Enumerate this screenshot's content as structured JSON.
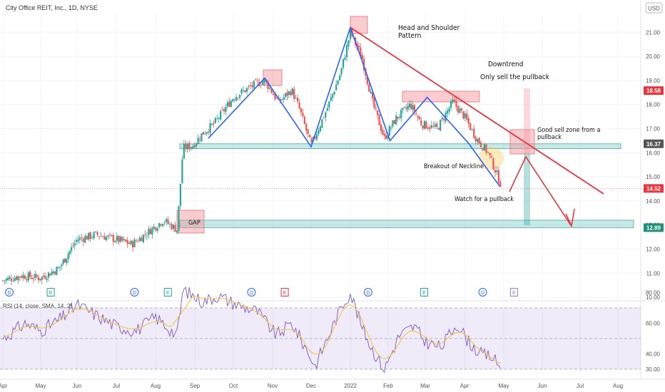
{
  "header": {
    "symbol_title": "City Office REIT, Inc., 1D, NYSE",
    "currency": "USD"
  },
  "rsi_title": "RSI (14, close, SMA, 14, 2)",
  "colors": {
    "up": "#26a69a",
    "down": "#ef5350",
    "trend_blue": "#2962ff",
    "trend_red": "#e8363f",
    "zone_red": "rgba(244,143,151,0.45)",
    "zone_green": "rgba(38,166,154,0.25)",
    "rsi_line": "#7e57c2",
    "rsi_ma": "#f5c542",
    "rsi_band": "rgba(126,87,194,0.12)"
  },
  "annotations": {
    "hs": [
      "Head and Shoulder",
      "Pattern"
    ],
    "downtrend": "Downtrend",
    "only_sell": "Only sell the pullback",
    "good_sell": [
      "Good sell zone from a",
      "pullback"
    ],
    "breakout": "Breakout of Neckline",
    "watch": "Watch for a pullback",
    "gap": "GAP"
  },
  "price_tags": [
    {
      "label": "18.58",
      "value": 18.58,
      "color": "#e8363f"
    },
    {
      "label": "16.37",
      "value": 16.37,
      "color": "#555555"
    },
    {
      "label": "14.52",
      "value": 14.52,
      "color": "#e8363f"
    },
    {
      "label": "12.89",
      "value": 12.89,
      "color": "#1e8f7a"
    }
  ],
  "event_markers": [
    {
      "label": "D",
      "month_index": 0,
      "color": "#2962ff"
    },
    {
      "label": "E",
      "month_index": 1.1,
      "color": "#26a69a"
    },
    {
      "label": "D",
      "month_index": 3.3,
      "color": "#2962ff"
    },
    {
      "label": "E",
      "month_index": 4.15,
      "color": "#26a69a"
    },
    {
      "label": "D",
      "month_index": 6.3,
      "color": "#2962ff"
    },
    {
      "label": "E",
      "month_index": 7.15,
      "color": "#e8363f"
    },
    {
      "label": "D",
      "month_index": 9.3,
      "color": "#2962ff"
    },
    {
      "label": "E",
      "month_index": 10.8,
      "color": "#26a69a"
    },
    {
      "label": "D",
      "month_index": 12.3,
      "color": "#2962ff"
    },
    {
      "label": "E",
      "month_index": 13.1,
      "color": "#9c7ac9"
    }
  ],
  "chart_data": {
    "type": "candlestick",
    "title": "City Office REIT, Inc., 1D, NYSE",
    "x_axis": {
      "labels": [
        "Apr",
        "May",
        "Jun",
        "Jul",
        "Aug",
        "Sep",
        "Oct",
        "Nov",
        "Dec",
        "2022",
        "Feb",
        "Mar",
        "Apr",
        "May",
        "Jun",
        "Jul",
        "Aug"
      ]
    },
    "y_axis": {
      "ticks": [
        "10.00",
        "11.00",
        "12.00",
        "13.00",
        "14.00",
        "15.00",
        "16.00",
        "17.00",
        "18.00",
        "19.00",
        "20.00",
        "21.00"
      ],
      "range": [
        9.9,
        21.8
      ],
      "unit": "USD"
    },
    "price_path_keypoints": [
      {
        "month_index": 0.0,
        "price": 10.7
      },
      {
        "month_index": 0.5,
        "price": 10.9
      },
      {
        "month_index": 1.0,
        "price": 10.8
      },
      {
        "month_index": 1.5,
        "price": 11.2
      },
      {
        "month_index": 2.0,
        "price": 12.4
      },
      {
        "month_index": 2.5,
        "price": 12.6
      },
      {
        "month_index": 3.0,
        "price": 12.4
      },
      {
        "month_index": 3.4,
        "price": 12.2
      },
      {
        "month_index": 3.8,
        "price": 12.7
      },
      {
        "month_index": 4.2,
        "price": 13.2
      },
      {
        "month_index": 4.55,
        "price": 12.8
      },
      {
        "month_index": 4.7,
        "price": 16.2
      },
      {
        "month_index": 4.95,
        "price": 16.3
      },
      {
        "month_index": 5.2,
        "price": 16.8
      },
      {
        "month_index": 5.5,
        "price": 17.2
      },
      {
        "month_index": 6.0,
        "price": 18.3
      },
      {
        "month_index": 6.5,
        "price": 18.8
      },
      {
        "month_index": 6.8,
        "price": 19.0
      },
      {
        "month_index": 7.15,
        "price": 18.1
      },
      {
        "month_index": 7.5,
        "price": 18.6
      },
      {
        "month_index": 7.7,
        "price": 17.8
      },
      {
        "month_index": 8.0,
        "price": 16.3
      },
      {
        "month_index": 8.4,
        "price": 17.8
      },
      {
        "month_index": 8.75,
        "price": 19.3
      },
      {
        "month_index": 9.0,
        "price": 21.0
      },
      {
        "month_index": 9.3,
        "price": 20.0
      },
      {
        "month_index": 9.6,
        "price": 18.0
      },
      {
        "month_index": 9.9,
        "price": 16.6
      },
      {
        "month_index": 10.2,
        "price": 17.4
      },
      {
        "month_index": 10.6,
        "price": 18.0
      },
      {
        "month_index": 10.9,
        "price": 17.2
      },
      {
        "month_index": 11.3,
        "price": 17.0
      },
      {
        "month_index": 11.7,
        "price": 18.1
      },
      {
        "month_index": 12.0,
        "price": 17.5
      },
      {
        "month_index": 12.3,
        "price": 16.6
      },
      {
        "month_index": 12.6,
        "price": 16.0
      },
      {
        "month_index": 12.95,
        "price": 14.6
      }
    ],
    "neckline_zone": {
      "low": 16.17,
      "high": 16.37
    },
    "gap_support_zone": {
      "low": 12.89,
      "high": 13.2
    },
    "rsi": {
      "ticks": [
        "30.00",
        "40.00",
        "60.00",
        "80.00"
      ],
      "levels": {
        "upper": 70,
        "middle": 50,
        "lower": 30
      },
      "range": [
        26,
        84
      ],
      "rsi_keypoints": [
        {
          "month_index": 0.0,
          "value": 50
        },
        {
          "month_index": 0.6,
          "value": 60
        },
        {
          "month_index": 1.0,
          "value": 55
        },
        {
          "month_index": 1.5,
          "value": 62
        },
        {
          "month_index": 2.0,
          "value": 72
        },
        {
          "month_index": 2.5,
          "value": 65
        },
        {
          "month_index": 3.0,
          "value": 58
        },
        {
          "month_index": 3.5,
          "value": 55
        },
        {
          "month_index": 4.0,
          "value": 64
        },
        {
          "month_index": 4.55,
          "value": 52
        },
        {
          "month_index": 4.7,
          "value": 82
        },
        {
          "month_index": 5.2,
          "value": 74
        },
        {
          "month_index": 5.6,
          "value": 78
        },
        {
          "month_index": 6.1,
          "value": 72
        },
        {
          "month_index": 6.6,
          "value": 68
        },
        {
          "month_index": 7.1,
          "value": 52
        },
        {
          "month_index": 7.5,
          "value": 60
        },
        {
          "month_index": 7.9,
          "value": 42
        },
        {
          "month_index": 8.1,
          "value": 32
        },
        {
          "month_index": 8.5,
          "value": 55
        },
        {
          "month_index": 8.8,
          "value": 72
        },
        {
          "month_index": 9.0,
          "value": 80
        },
        {
          "month_index": 9.3,
          "value": 58
        },
        {
          "month_index": 9.6,
          "value": 42
        },
        {
          "month_index": 9.9,
          "value": 30
        },
        {
          "month_index": 10.3,
          "value": 52
        },
        {
          "month_index": 10.7,
          "value": 58
        },
        {
          "month_index": 11.0,
          "value": 48
        },
        {
          "month_index": 11.4,
          "value": 44
        },
        {
          "month_index": 11.8,
          "value": 60
        },
        {
          "month_index": 12.1,
          "value": 48
        },
        {
          "month_index": 12.4,
          "value": 40
        },
        {
          "month_index": 12.7,
          "value": 38
        },
        {
          "month_index": 12.95,
          "value": 30
        }
      ]
    }
  }
}
